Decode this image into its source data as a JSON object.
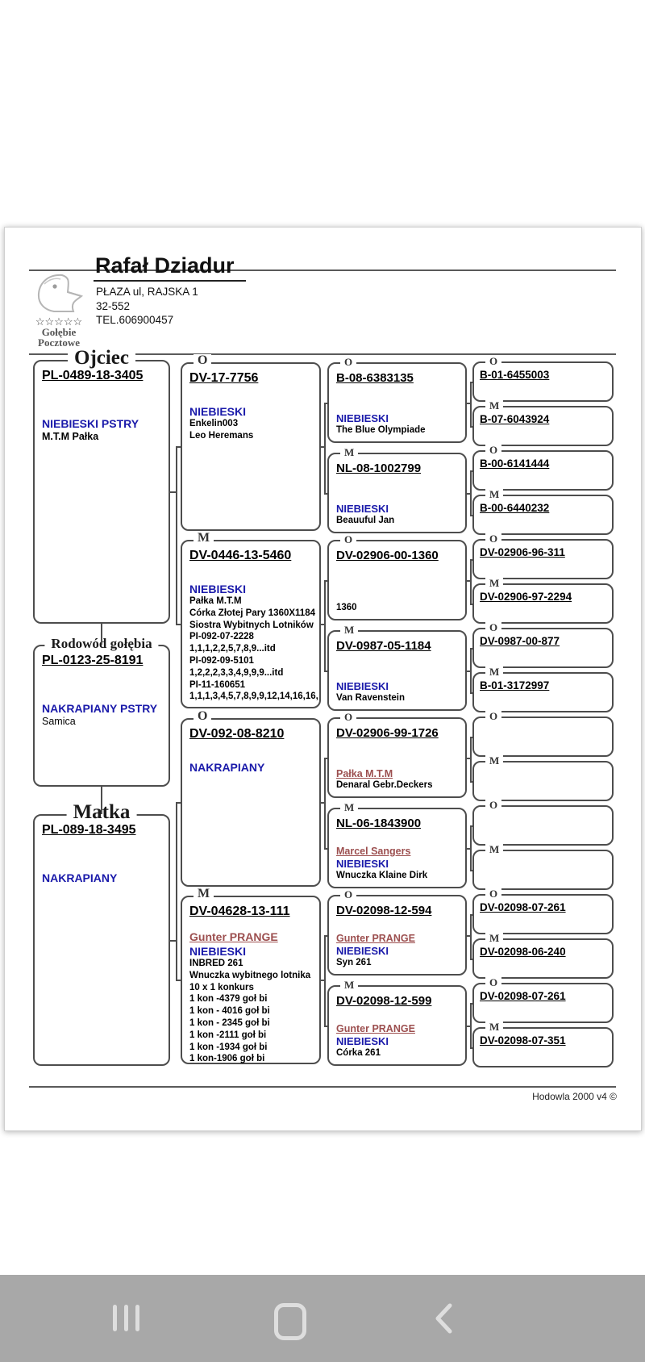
{
  "header": {
    "name": "Rafał Dziadur",
    "address_line1": "PŁAZA ul, RAJSKA 1",
    "address_line2": "32-552",
    "phone": "TEL.606900457",
    "logo": {
      "stars": "☆☆☆☆☆",
      "caption_line1": "Gołębie",
      "caption_line2": "Pocztowe"
    }
  },
  "footer": {
    "credit": "Hodowla 2000 v4 ©"
  },
  "colors": {
    "color_label_navy": "#1a1aaa",
    "fancier_maroon": "#9c4f4f",
    "box_border_gray": "#4d4d4d",
    "navbar_gray": "#a8a8a8"
  },
  "tree": {
    "gen1": [
      {
        "title": "Ojciec",
        "ring": "PL-0489-18-3405",
        "color": "NIEBIESKI PSTRY",
        "lines": [
          "M.T.M Pałka"
        ]
      },
      {
        "title": "Rodowód gołębia",
        "ring": "PL-0123-25-8191",
        "color": "NAKRAPIANY PSTRY",
        "plain": true,
        "lines": [
          "Samica"
        ]
      },
      {
        "title": "Matka",
        "ring": "PL-089-18-3495",
        "color": "NAKRAPIANY",
        "lines": []
      }
    ],
    "gen2": [
      {
        "sex": "O",
        "ring": "DV-17-7756",
        "color": "NIEBIESKI",
        "lines": [
          "Enkelin003",
          "Leo Heremans"
        ]
      },
      {
        "sex": "M",
        "ring": "DV-0446-13-5460",
        "color": "NIEBIESKI",
        "lines": [
          "Pałka M.T.M",
          "Córka Złotej Pary 1360X1184",
          "Siostra Wybitnych Lotników",
          "PI-092-07-2228",
          "1,1,1,2,2,5,7,8,9...itd",
          "PI-092-09-5101",
          "1,2,2,2,3,3,4,9,9,9...itd",
          "PI-11-160651",
          "1,1,1,3,4,5,7,8,9,9,12,14,16,16,"
        ]
      },
      {
        "sex": "O",
        "ring": "DV-092-08-8210",
        "color": "NAKRAPIANY",
        "lines": []
      },
      {
        "sex": "M",
        "ring": "DV-04628-13-111",
        "fancier": "Gunter PRANGE",
        "color": "NIEBIESKI",
        "lines": [
          "INBRED 261",
          "Wnuczka wybitnego lotnika",
          "10 x 1 konkurs",
          "1 kon -4379 goł  bi",
          "1 kon - 4016 goł  bi",
          "1 kon - 2345 goł  bi",
          "1 kon -2111 goł  bi",
          "1 kon -1934 goł  bi",
          "1 kon-1906 goł  bi"
        ]
      }
    ],
    "gen3": [
      {
        "sex": "O",
        "ring": "B-08-6383135",
        "color": "NIEBIESKI",
        "lines": [
          "The Blue Olympiade"
        ]
      },
      {
        "sex": "M",
        "ring": "NL-08-1002799",
        "color": "NIEBIESKI",
        "lines": [
          "Beauuful Jan"
        ]
      },
      {
        "sex": "O",
        "ring": "DV-02906-00-1360",
        "lines": [
          "1360"
        ]
      },
      {
        "sex": "M",
        "ring": "DV-0987-05-1184",
        "color": "NIEBIESKI",
        "lines": [
          "Van Ravenstein"
        ]
      },
      {
        "sex": "O",
        "ring": "DV-02906-99-1726",
        "fancier": "Pałka M.T.M",
        "lines": [
          "Denaral Gebr.Deckers"
        ]
      },
      {
        "sex": "M",
        "ring": "NL-06-1843900",
        "fancier": "Marcel Sangers",
        "color": "NIEBIESKI",
        "lines": [
          "Wnuczka Klaine Dirk"
        ]
      },
      {
        "sex": "O",
        "ring": "DV-02098-12-594",
        "fancier": "Gunter PRANGE",
        "color": "NIEBIESKI",
        "lines": [
          "Syn 261"
        ]
      },
      {
        "sex": "M",
        "ring": "DV-02098-12-599",
        "fancier": "Gunter PRANGE",
        "color": "NIEBIESKI",
        "lines": [
          "Córka 261"
        ]
      }
    ],
    "gen4": [
      {
        "sex": "O",
        "ring": "B-01-6455003"
      },
      {
        "sex": "M",
        "ring": "B-07-6043924"
      },
      {
        "sex": "O",
        "ring": "B-00-6141444"
      },
      {
        "sex": "M",
        "ring": "B-00-6440232"
      },
      {
        "sex": "O",
        "ring": "DV-02906-96-311"
      },
      {
        "sex": "M",
        "ring": "DV-02906-97-2294"
      },
      {
        "sex": "O",
        "ring": "DV-0987-00-877"
      },
      {
        "sex": "M",
        "ring": "B-01-3172997"
      },
      {
        "sex": "O",
        "ring": ""
      },
      {
        "sex": "M",
        "ring": ""
      },
      {
        "sex": "O",
        "ring": ""
      },
      {
        "sex": "M",
        "ring": ""
      },
      {
        "sex": "O",
        "ring": "DV-02098-07-261"
      },
      {
        "sex": "M",
        "ring": "DV-02098-06-240"
      },
      {
        "sex": "O",
        "ring": "DV-02098-07-261"
      },
      {
        "sex": "M",
        "ring": "DV-02098-07-351"
      }
    ]
  },
  "navbar": {
    "buttons": [
      "recent-apps",
      "home",
      "back"
    ]
  }
}
